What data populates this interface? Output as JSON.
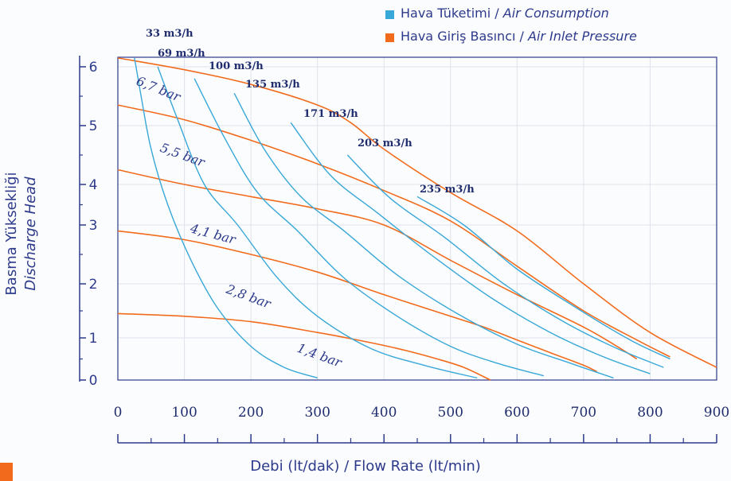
{
  "legend": {
    "air_consumption": {
      "label_tr": "Hava Tüketimi / ",
      "label_en": "Air Consumption",
      "color": "#38a8d8"
    },
    "air_inlet_pressure": {
      "label_tr": "Hava Giriş Basıncı / ",
      "label_en": "Air Inlet Pressure",
      "color": "#f26b1d"
    }
  },
  "axes": {
    "y_label_line1": "Basma Yüksekliği",
    "y_label_line2": "Discharge Head",
    "x_label": "Debi (lt/dak) / Flow Rate (lt/min)"
  },
  "chart_data": {
    "type": "line",
    "xlim": [
      0,
      900
    ],
    "ylim": [
      0,
      6.3
    ],
    "x_ticks": [
      "0",
      "100",
      "200",
      "300",
      "400",
      "500",
      "600",
      "700",
      "800",
      "900"
    ],
    "y_ticks": [
      "0",
      "1",
      "2",
      "3",
      "4",
      "5",
      "6"
    ],
    "grid": true,
    "legend_position": "top-right",
    "pressure_series": [
      {
        "name": "1,4 bar",
        "x": [
          0,
          100,
          200,
          300,
          360,
          420,
          480,
          520,
          560
        ],
        "y": [
          1.45,
          1.4,
          1.3,
          1.1,
          0.95,
          0.75,
          0.5,
          0.3,
          0.0
        ]
      },
      {
        "name": "2,8 bar",
        "x": [
          0,
          100,
          200,
          300,
          400,
          500,
          550,
          600,
          650,
          700,
          720
        ],
        "y": [
          2.9,
          2.75,
          2.5,
          2.2,
          1.8,
          1.4,
          1.2,
          0.95,
          0.65,
          0.35,
          0.2
        ]
      },
      {
        "name": "4,1 bar",
        "x": [
          0,
          100,
          200,
          300,
          400,
          500,
          600,
          700,
          750,
          780
        ],
        "y": [
          4.25,
          4.0,
          3.7,
          3.4,
          3.0,
          2.4,
          1.8,
          1.2,
          0.8,
          0.5
        ]
      },
      {
        "name": "5,5 bar",
        "x": [
          0,
          100,
          200,
          300,
          400,
          500,
          600,
          700,
          780,
          830
        ],
        "y": [
          5.35,
          5.1,
          4.75,
          4.35,
          3.85,
          3.1,
          2.3,
          1.5,
          0.95,
          0.55
        ]
      },
      {
        "name": "6,7 bar",
        "x": [
          0,
          100,
          200,
          300,
          350,
          400,
          500,
          600,
          700,
          800,
          900
        ],
        "y": [
          6.15,
          5.95,
          5.7,
          5.35,
          5.05,
          4.6,
          3.8,
          2.9,
          2.0,
          1.1,
          0.3
        ]
      }
    ],
    "consumption_series": [
      {
        "name": "33 m3/h",
        "x": [
          25,
          35,
          50,
          75,
          110,
          150,
          200,
          250,
          300
        ],
        "y": [
          6.15,
          5.5,
          4.6,
          3.5,
          2.4,
          1.55,
          0.8,
          0.3,
          0.05
        ]
      },
      {
        "name": "69 m3/h",
        "x": [
          60,
          90,
          130,
          180,
          240,
          300,
          380,
          460,
          540
        ],
        "y": [
          6.0,
          5.1,
          4.0,
          3.0,
          2.1,
          1.4,
          0.75,
          0.35,
          0.05
        ]
      },
      {
        "name": "100 m3/h",
        "x": [
          115,
          160,
          210,
          270,
          340,
          420,
          500,
          570,
          640
        ],
        "y": [
          5.8,
          4.8,
          3.8,
          2.9,
          2.1,
          1.4,
          0.8,
          0.4,
          0.1
        ]
      },
      {
        "name": "135 m3/h",
        "x": [
          175,
          220,
          275,
          340,
          420,
          510,
          600,
          680,
          745
        ],
        "y": [
          5.55,
          4.6,
          3.7,
          2.9,
          2.15,
          1.45,
          0.85,
          0.4,
          0.05
        ]
      },
      {
        "name": "171 m3/h",
        "x": [
          260,
          320,
          390,
          470,
          560,
          650,
          730,
          800
        ],
        "y": [
          5.05,
          4.15,
          3.3,
          2.5,
          1.75,
          1.1,
          0.55,
          0.15
        ]
      },
      {
        "name": "203 m3/h",
        "x": [
          345,
          410,
          490,
          580,
          670,
          750,
          820
        ],
        "y": [
          4.5,
          3.65,
          2.8,
          2.0,
          1.3,
          0.75,
          0.3
        ]
      },
      {
        "name": "235 m3/h",
        "x": [
          450,
          520,
          600,
          690,
          770,
          830
        ],
        "y": [
          3.7,
          3.0,
          2.25,
          1.55,
          0.95,
          0.5
        ]
      }
    ],
    "consumption_labels": [
      "33 m3/h",
      "69 m3/h",
      "100 m3/h",
      "135 m3/h",
      "171 m3/h",
      "203 m3/h",
      "235 m3/h"
    ],
    "pressure_labels": [
      "6,7 bar",
      "5,5 bar",
      "4,1 bar",
      "2,8 bar",
      "1,4 bar"
    ]
  }
}
